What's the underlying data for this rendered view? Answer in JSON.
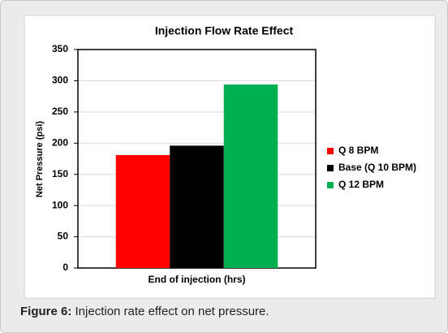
{
  "chart_data": {
    "type": "bar",
    "title": "Injection Flow Rate Effect",
    "y_label": "Net Pressure (psi)",
    "categories": [
      "End of injection (hrs)"
    ],
    "series": [
      {
        "name": "Q 8 BPM",
        "color": "#ff0000",
        "values": [
          181
        ]
      },
      {
        "name": "Base (Q 10 BPM)",
        "color": "#000000",
        "values": [
          196
        ]
      },
      {
        "name": "Q 12 BPM",
        "color": "#00b050",
        "values": [
          294
        ]
      }
    ],
    "ylim": [
      0,
      350
    ],
    "yticks": [
      0,
      50,
      100,
      150,
      200,
      250,
      300,
      350
    ],
    "grid": true,
    "legend": "right"
  },
  "caption": {
    "label": "Figure 6:",
    "text": "Injection rate effect on net pressure."
  }
}
